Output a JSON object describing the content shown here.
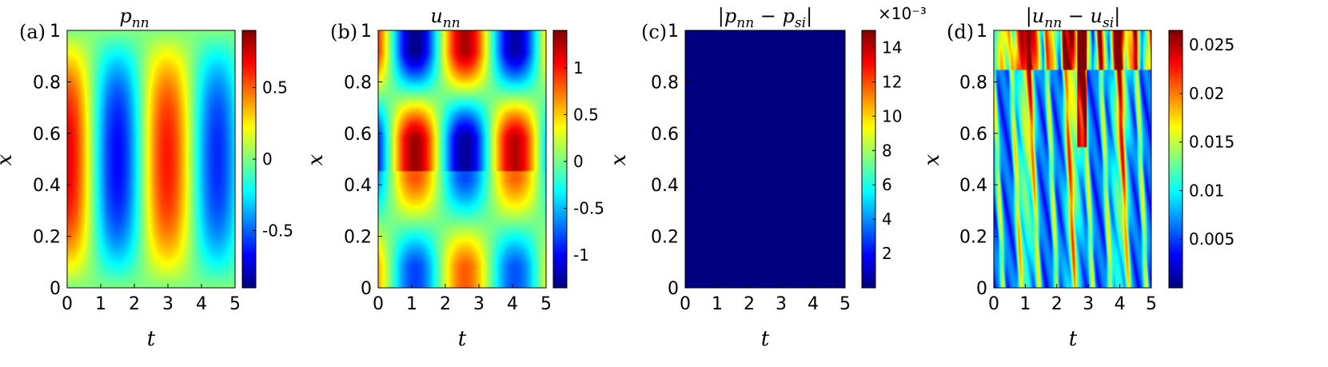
{
  "figure": {
    "x_axis_label": "t",
    "y_axis_label": "x"
  },
  "colors": {
    "jet_dark_blue": "#00008f",
    "jet_blue": "#0000ff",
    "jet_cyan": "#00ffff",
    "jet_yellow": "#ffff00",
    "jet_red": "#ff0000",
    "jet_dark_red": "#800000",
    "axis": "#000000"
  },
  "chart_data": [
    {
      "type": "heatmap",
      "panel_label": "(a)",
      "title": "p_nn",
      "xlabel": "t",
      "ylabel": "x",
      "xlim": [
        0,
        5
      ],
      "ylim": [
        0,
        1
      ],
      "xticks": [
        "0",
        "1",
        "2",
        "3",
        "4",
        "5"
      ],
      "yticks": [
        "0",
        "0.2",
        "0.4",
        "0.6",
        "0.8",
        "1"
      ],
      "colorbar": {
        "range": [
          -0.9,
          0.9
        ],
        "ticks": [
          -0.5,
          0,
          0.5
        ],
        "tick_labels": [
          "-0.5",
          "0",
          "0.5"
        ],
        "exponent": ""
      },
      "field": "pressure"
    },
    {
      "type": "heatmap",
      "panel_label": "(b)",
      "title": "u_nn",
      "xlabel": "t",
      "ylabel": "x",
      "xlim": [
        0,
        5
      ],
      "ylim": [
        0,
        1
      ],
      "xticks": [
        "0",
        "1",
        "2",
        "3",
        "4",
        "5"
      ],
      "yticks": [
        "0",
        "0.2",
        "0.4",
        "0.6",
        "0.8",
        "1"
      ],
      "colorbar": {
        "range": [
          -1.35,
          1.4
        ],
        "ticks": [
          -1,
          -0.5,
          0,
          0.5,
          1
        ],
        "tick_labels": [
          "-1",
          "-0.5",
          "0",
          "0.5",
          "1"
        ],
        "exponent": ""
      },
      "field": "velocity"
    },
    {
      "type": "heatmap",
      "panel_label": "(c)",
      "title": "|p_nn − p_si|",
      "xlabel": "t",
      "ylabel": "x",
      "xlim": [
        0,
        5
      ],
      "ylim": [
        0,
        1
      ],
      "xticks": [
        "0",
        "1",
        "2",
        "3",
        "4",
        "5"
      ],
      "yticks": [
        "0",
        "0.2",
        "0.4",
        "0.6",
        "0.8",
        "1"
      ],
      "colorbar": {
        "range": [
          0,
          15
        ],
        "ticks": [
          2,
          4,
          6,
          8,
          10,
          12,
          14
        ],
        "tick_labels": [
          "2",
          "4",
          "6",
          "8",
          "10",
          "12",
          "14"
        ],
        "exponent": "×10⁻³"
      },
      "field": "pressure_error"
    },
    {
      "type": "heatmap",
      "panel_label": "(d)",
      "title": "|u_nn − u_si|",
      "xlabel": "t",
      "ylabel": "x",
      "xlim": [
        0,
        5
      ],
      "ylim": [
        0,
        1
      ],
      "xticks": [
        "0",
        "1",
        "2",
        "3",
        "4",
        "5"
      ],
      "yticks": [
        "0",
        "0.2",
        "0.4",
        "0.6",
        "0.8",
        "1"
      ],
      "colorbar": {
        "range": [
          0,
          0.0265
        ],
        "ticks": [
          0.005,
          0.01,
          0.015,
          0.02,
          0.025
        ],
        "tick_labels": [
          "0.005",
          "0.01",
          "0.015",
          "0.02",
          "0.025"
        ],
        "exponent": ""
      },
      "field": "velocity_error"
    }
  ]
}
